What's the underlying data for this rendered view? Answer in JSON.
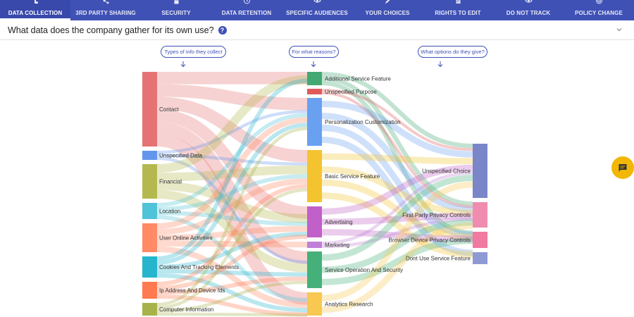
{
  "nav": {
    "tabs": [
      {
        "label": "DATA COLLECTION",
        "icon": "hand-pointer-icon",
        "active": true
      },
      {
        "label": "3RD PARTY SHARING",
        "icon": "share-icon",
        "active": false
      },
      {
        "label": "SECURITY",
        "icon": "lock-icon",
        "active": false
      },
      {
        "label": "DATA RETENTION",
        "icon": "clock-icon",
        "active": false
      },
      {
        "label": "SPECIFIC AUDIENCES",
        "icon": "eye-icon",
        "active": false
      },
      {
        "label": "YOUR CHOICES",
        "icon": "pencil-icon",
        "active": false
      },
      {
        "label": "RIGHTS TO EDIT",
        "icon": "document-icon",
        "active": false
      },
      {
        "label": "DO NOT TRACK",
        "icon": "eye-icon",
        "active": false
      },
      {
        "label": "POLICY CHANGE",
        "icon": "target-icon",
        "active": false
      }
    ]
  },
  "question": {
    "title": "What data does the company gather for its own use?",
    "help_glyph": "?"
  },
  "columns": {
    "col1": "Types of info they collect",
    "col2": "For what reasons?",
    "col3": "What options do they give?"
  },
  "sankey": {
    "sources": [
      {
        "name": "Contact",
        "color": "#e57373"
      },
      {
        "name": "Unspecified Data",
        "color": "#6495ed"
      },
      {
        "name": "Financial",
        "color": "#b5b84f"
      },
      {
        "name": "Location",
        "color": "#4fc3d7"
      },
      {
        "name": "User Online Activities",
        "color": "#ff8a65"
      },
      {
        "name": "Cookies And Tracking Elements",
        "color": "#26b5cc"
      },
      {
        "name": "Ip Address And Device Ids",
        "color": "#ff7a50"
      },
      {
        "name": "Computer Information",
        "color": "#a8b24a"
      }
    ],
    "purposes": [
      {
        "name": "Additional Service Feature",
        "color": "#43a872"
      },
      {
        "name": "Unspecified Purpose",
        "color": "#e05a5a"
      },
      {
        "name": "Personalization Customization",
        "color": "#6aa0f0"
      },
      {
        "name": "Basic Service Feature",
        "color": "#f4c430"
      },
      {
        "name": "Advertising",
        "color": "#c060c8"
      },
      {
        "name": "Marketing",
        "color": "#c080d8"
      },
      {
        "name": "Service Operation And Security",
        "color": "#45b07a"
      },
      {
        "name": "Analytics Research",
        "color": "#f8c850"
      }
    ],
    "options": [
      {
        "name": "Unspecified Choice",
        "color": "#7a86c8"
      },
      {
        "name": "First Party Privacy Controls",
        "color": "#f08cb0"
      },
      {
        "name": "Browser Device Privacy Controls",
        "color": "#f07aa0"
      },
      {
        "name": "Dont Use Service Feature",
        "color": "#8f9ad4"
      }
    ]
  },
  "chat_icon": "chat-icon"
}
